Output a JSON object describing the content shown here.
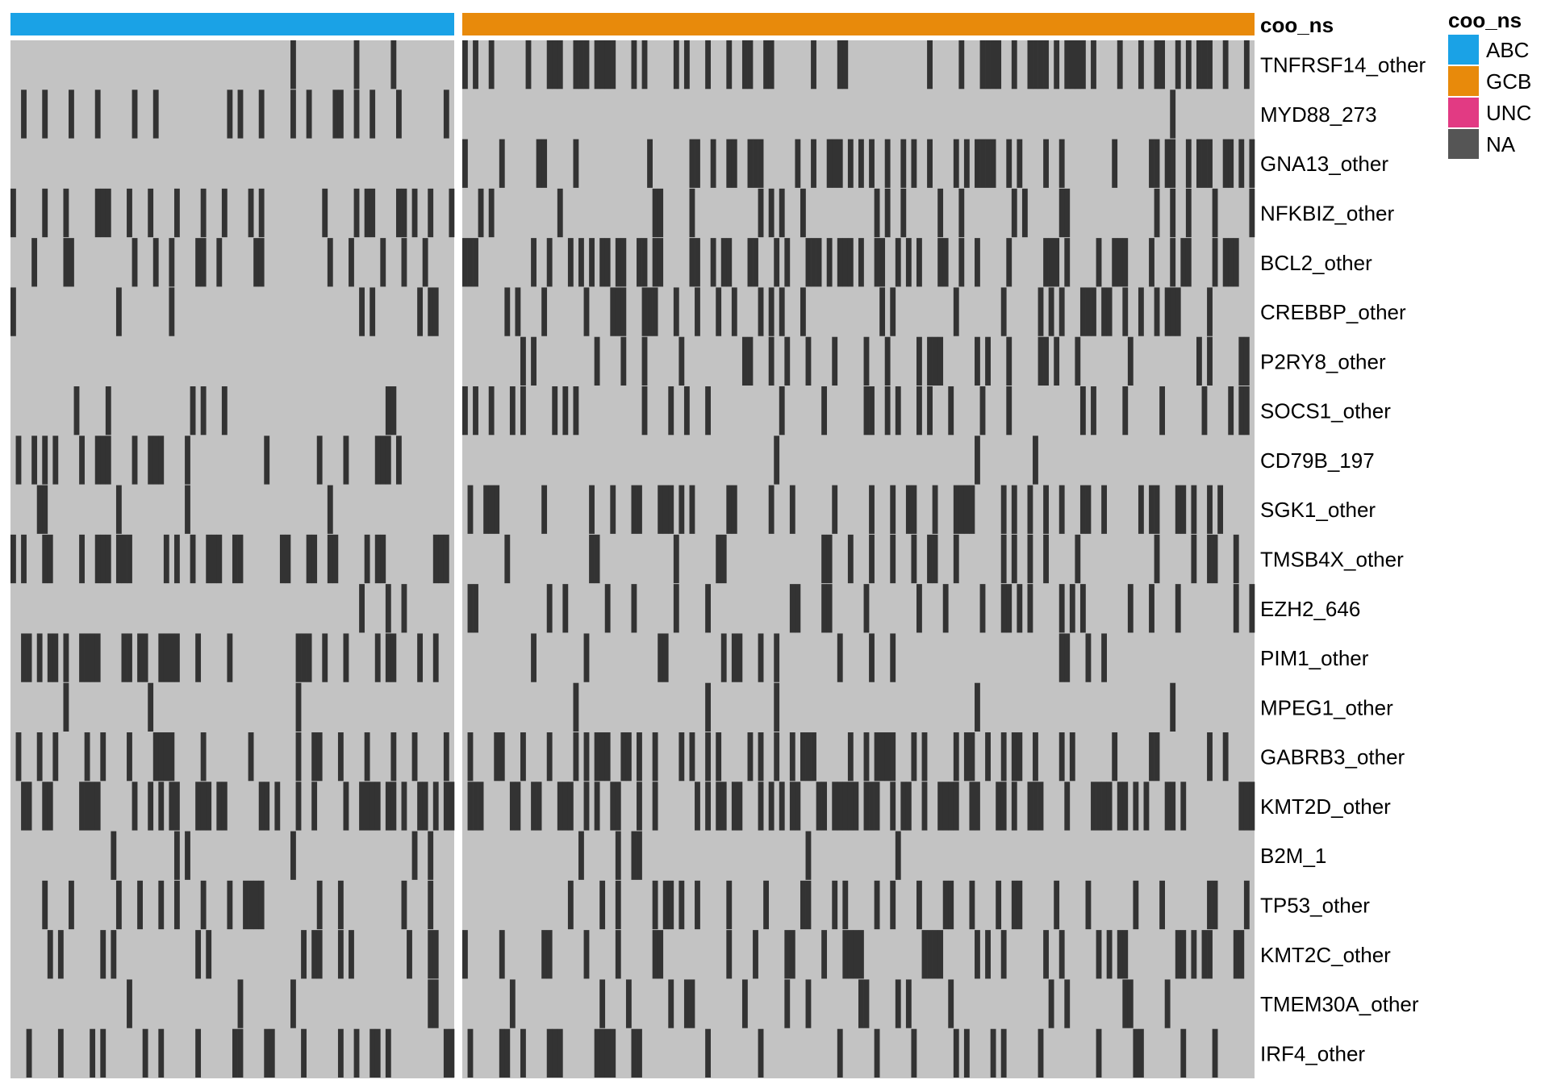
{
  "chart_data": {
    "type": "heatmap",
    "annotation": {
      "name": "coo_ns",
      "groups": [
        {
          "label": "ABC",
          "n_samples": 84
        },
        {
          "label": "GCB",
          "n_samples": 150
        }
      ]
    },
    "legend": {
      "title": "coo_ns",
      "placement": "top-right",
      "entries": [
        {
          "label": "ABC",
          "color": "#1AA2E6"
        },
        {
          "label": "GCB",
          "color": "#E88A0B"
        },
        {
          "label": "UNC",
          "color": "#E23A83"
        },
        {
          "label": "NA",
          "color": "#555555"
        }
      ]
    },
    "colors": {
      "present": "#333333",
      "absent": "#C3C3C3"
    },
    "rows": [
      {
        "label": "TNFRSF14_other",
        "abc_frac": 0.03,
        "gcb_frac": 0.33
      },
      {
        "label": "MYD88_273",
        "abc_frac": 0.27,
        "gcb_frac": 0.01
      },
      {
        "label": "GNA13_other",
        "abc_frac": 0.01,
        "gcb_frac": 0.31
      },
      {
        "label": "NFKBIZ_other",
        "abc_frac": 0.31,
        "gcb_frac": 0.09
      },
      {
        "label": "BCL2_other",
        "abc_frac": 0.19,
        "gcb_frac": 0.39
      },
      {
        "label": "CREBBP_other",
        "abc_frac": 0.07,
        "gcb_frac": 0.27
      },
      {
        "label": "P2RY8_other",
        "abc_frac": 0.03,
        "gcb_frac": 0.22
      },
      {
        "label": "SOCS1_other",
        "abc_frac": 0.07,
        "gcb_frac": 0.24
      },
      {
        "label": "CD79B_197",
        "abc_frac": 0.17,
        "gcb_frac": 0.01
      },
      {
        "label": "SGK1_other",
        "abc_frac": 0.07,
        "gcb_frac": 0.25
      },
      {
        "label": "TMSB4X_other",
        "abc_frac": 0.31,
        "gcb_frac": 0.17
      },
      {
        "label": "EZH2_646",
        "abc_frac": 0.02,
        "gcb_frac": 0.21
      },
      {
        "label": "PIM1_other",
        "abc_frac": 0.37,
        "gcb_frac": 0.13
      },
      {
        "label": "MPEG1_other",
        "abc_frac": 0.07,
        "gcb_frac": 0.02
      },
      {
        "label": "GABRB3_other",
        "abc_frac": 0.26,
        "gcb_frac": 0.33
      },
      {
        "label": "KMT2D_other",
        "abc_frac": 0.38,
        "gcb_frac": 0.41
      },
      {
        "label": "B2M_1",
        "abc_frac": 0.07,
        "gcb_frac": 0.06
      },
      {
        "label": "TP53_other",
        "abc_frac": 0.27,
        "gcb_frac": 0.19
      },
      {
        "label": "KMT2C_other",
        "abc_frac": 0.22,
        "gcb_frac": 0.22
      },
      {
        "label": "TMEM30A_other",
        "abc_frac": 0.13,
        "gcb_frac": 0.13
      },
      {
        "label": "IRF4_other",
        "abc_frac": 0.2,
        "gcb_frac": 0.17
      }
    ]
  }
}
